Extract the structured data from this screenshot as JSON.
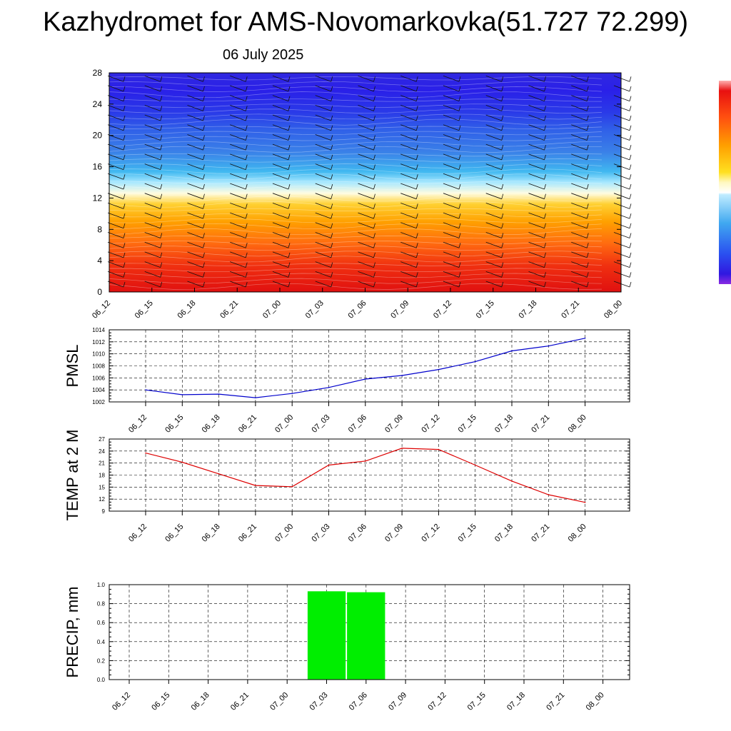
{
  "title": "Kazhydromet for AMS-Novomarkovka(51.727 72.299)",
  "subtitle": "06 July 2025",
  "colors": {
    "pmsl_line": "#0000cc",
    "temp_line": "#dd0000",
    "precip_bar": "#00ee00",
    "colorbar_scale": [
      "#8a2be2",
      "#2a2aff",
      "#3060f0",
      "#50b0f0",
      "#a0e0ff",
      "#fffde0",
      "#ffe020",
      "#ffa000",
      "#ff6010",
      "#ee1010",
      "#ffb0b0"
    ]
  },
  "chart_data": [
    {
      "type": "heatmap",
      "ylim": [
        0,
        28
      ],
      "y_ticks": [
        "0",
        "4",
        "8",
        "12",
        "16",
        "20",
        "24",
        "28"
      ],
      "x_ticks": [
        "06_12",
        "06_15",
        "06_18",
        "06_21",
        "07_00",
        "07_03",
        "07_06",
        "07_09",
        "07_12",
        "07_15",
        "07_18",
        "07_21",
        "08_00"
      ],
      "colorbar": true
    },
    {
      "type": "line",
      "ylabel": "PMSL",
      "ylim": [
        1002,
        1014
      ],
      "y_ticks": [
        "1002",
        "1004",
        "1006",
        "1008",
        "1010",
        "1012",
        "1014"
      ],
      "x": [
        "06_12",
        "06_15",
        "06_18",
        "06_21",
        "07_00",
        "07_03",
        "07_06",
        "07_09",
        "07_12",
        "07_15",
        "07_18",
        "07_21",
        "08_00"
      ],
      "values": [
        1004.0,
        1003.2,
        1003.3,
        1002.7,
        1003.4,
        1004.4,
        1005.8,
        1006.4,
        1007.4,
        1008.7,
        1010.5,
        1011.3,
        1012.6
      ],
      "grid": true
    },
    {
      "type": "line",
      "ylabel": "TEMP at 2 M",
      "ylim": [
        9,
        27
      ],
      "y_ticks": [
        "9",
        "12",
        "15",
        "18",
        "21",
        "24",
        "27"
      ],
      "x": [
        "06_12",
        "06_15",
        "06_18",
        "06_21",
        "07_00",
        "07_03",
        "07_06",
        "07_09",
        "07_12",
        "07_15",
        "07_18",
        "07_21",
        "08_00"
      ],
      "values": [
        23.5,
        21.2,
        18.3,
        15.4,
        15.1,
        20.5,
        21.5,
        24.7,
        24.4,
        20.5,
        16.5,
        13.1,
        11.2
      ],
      "grid": true
    },
    {
      "type": "bar",
      "ylabel": "PRECIP, mm",
      "ylim": [
        0,
        1.0
      ],
      "y_ticks": [
        "0.0",
        "0.2",
        "0.4",
        "0.6",
        "0.8",
        "1.0"
      ],
      "categories": [
        "06_12",
        "06_15",
        "06_18",
        "06_21",
        "07_00",
        "07_03",
        "07_06",
        "07_09",
        "07_12",
        "07_15",
        "07_18",
        "07_21",
        "08_00"
      ],
      "values": [
        0,
        0,
        0,
        0,
        0,
        0.93,
        0.92,
        0,
        0,
        0,
        0,
        0,
        0
      ],
      "grid": true
    }
  ]
}
